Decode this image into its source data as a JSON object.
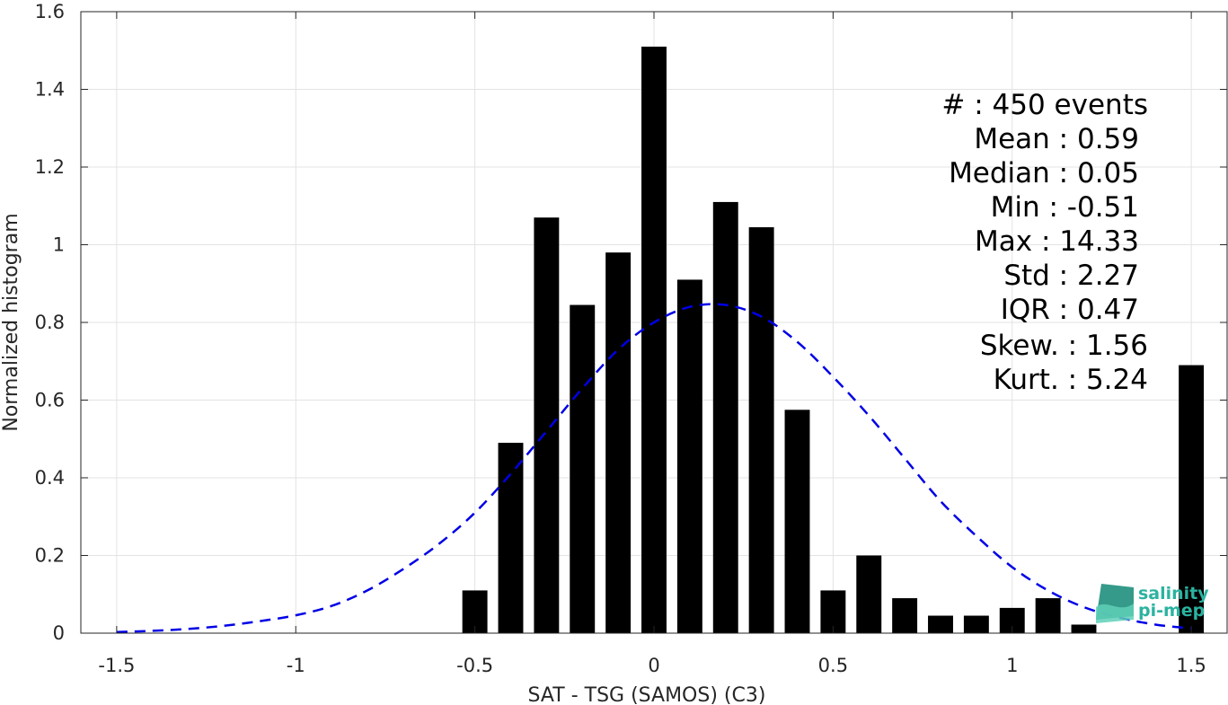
{
  "chart_data": {
    "type": "bar",
    "xlabel": "SAT - TSG (SAMOS) (C3)",
    "ylabel": "Normalized histogram",
    "xlim": [
      -1.6,
      1.6
    ],
    "ylim": [
      0,
      1.6
    ],
    "x_ticks": [
      "-1.5",
      "-1",
      "-0.5",
      "0",
      "0.5",
      "1",
      "1.5"
    ],
    "y_ticks": [
      "0",
      "0.2",
      "0.4",
      "0.6",
      "0.8",
      "1",
      "1.2",
      "1.4",
      "1.6"
    ],
    "grid": true,
    "bar_width": 0.07,
    "bars": {
      "x": [
        -0.5,
        -0.4,
        -0.3,
        -0.2,
        -0.1,
        0.0,
        0.1,
        0.2,
        0.3,
        0.4,
        0.5,
        0.6,
        0.7,
        0.8,
        0.9,
        1.0,
        1.1,
        1.2,
        1.5
      ],
      "values": [
        0.11,
        0.49,
        1.07,
        0.845,
        0.98,
        1.51,
        0.91,
        1.11,
        1.045,
        0.575,
        0.11,
        0.2,
        0.09,
        0.045,
        0.045,
        0.065,
        0.09,
        0.022,
        0.69
      ],
      "color": "#000000"
    },
    "fit_curve": {
      "style": "dashed",
      "color": "#0000e6",
      "x": [
        -1.5,
        -1.4,
        -1.3,
        -1.2,
        -1.1,
        -1.0,
        -0.9,
        -0.8,
        -0.7,
        -0.6,
        -0.5,
        -0.4,
        -0.3,
        -0.2,
        -0.1,
        0.0,
        0.1,
        0.2,
        0.3,
        0.4,
        0.5,
        0.6,
        0.7,
        0.8,
        0.9,
        1.0,
        1.1,
        1.2,
        1.3,
        1.4,
        1.5
      ],
      "y": [
        0.003,
        0.006,
        0.011,
        0.019,
        0.031,
        0.046,
        0.07,
        0.11,
        0.165,
        0.23,
        0.31,
        0.41,
        0.52,
        0.63,
        0.73,
        0.8,
        0.84,
        0.845,
        0.815,
        0.75,
        0.66,
        0.56,
        0.45,
        0.34,
        0.25,
        0.17,
        0.11,
        0.067,
        0.04,
        0.022,
        0.012
      ]
    },
    "annotations": [
      "#  : 450 events",
      "Mean : 0.59",
      "Median : 0.05",
      "Min : -0.51",
      "Max : 14.33",
      "Std : 2.27",
      "IQR : 0.47",
      "Skew. : 1.56",
      "Kurt. : 5.24"
    ]
  },
  "logo": {
    "line1": "salinity",
    "line2": "pi-mep",
    "color": "#2bb3a0"
  }
}
